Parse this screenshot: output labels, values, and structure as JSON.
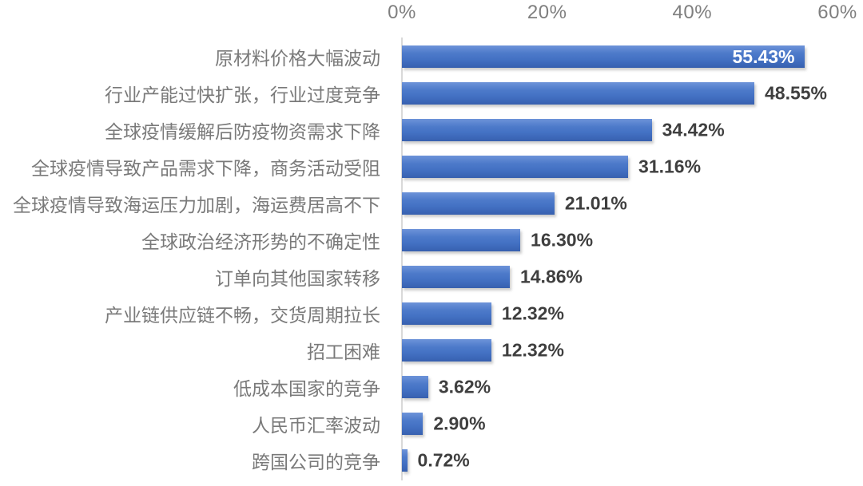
{
  "chart_data": {
    "type": "bar",
    "orientation": "horizontal",
    "title": "",
    "xlabel": "",
    "ylabel": "",
    "xlim": [
      0,
      60
    ],
    "tick_position": "top",
    "grid": false,
    "legend": null,
    "x_ticks": [
      {
        "value": 0,
        "label": "0%"
      },
      {
        "value": 20,
        "label": "20%"
      },
      {
        "value": 40,
        "label": "40%"
      },
      {
        "value": 60,
        "label": "60%"
      }
    ],
    "categories": [
      "原材料价格大幅波动",
      "行业产能过快扩张，行业过度竞争",
      "全球疫情缓解后防疫物资需求下降",
      "全球疫情导致产品需求下降，商务活动受阻",
      "全球疫情导致海运压力加剧，海运费居高不下",
      "全球政治经济形势的不确定性",
      "订单向其他国家转移",
      "产业链供应链不畅，交货周期拉长",
      "招工困难",
      "低成本国家的竞争",
      "人民币汇率波动",
      "跨国公司的竞争"
    ],
    "values": [
      55.43,
      48.55,
      34.42,
      31.16,
      21.01,
      16.3,
      14.86,
      12.32,
      12.32,
      3.62,
      2.9,
      0.72
    ],
    "value_labels": [
      "55.43%",
      "48.55%",
      "34.42%",
      "31.16%",
      "21.01%",
      "16.30%",
      "14.86%",
      "12.32%",
      "12.32%",
      "3.62%",
      "2.90%",
      "0.72%"
    ],
    "inside_label_threshold": 50,
    "colors": {
      "bar": "#4472C4",
      "bar_gradient_top": "#6D93D9",
      "bar_gradient_bottom": "#3760AE",
      "value_label": "#3F3F3F",
      "value_label_inside": "#FFFFFF",
      "category_label": "#7A7A7A",
      "tick_label": "#7F7F7F",
      "axis_line": "#D9D9D9",
      "background": "#FFFFFF"
    }
  }
}
